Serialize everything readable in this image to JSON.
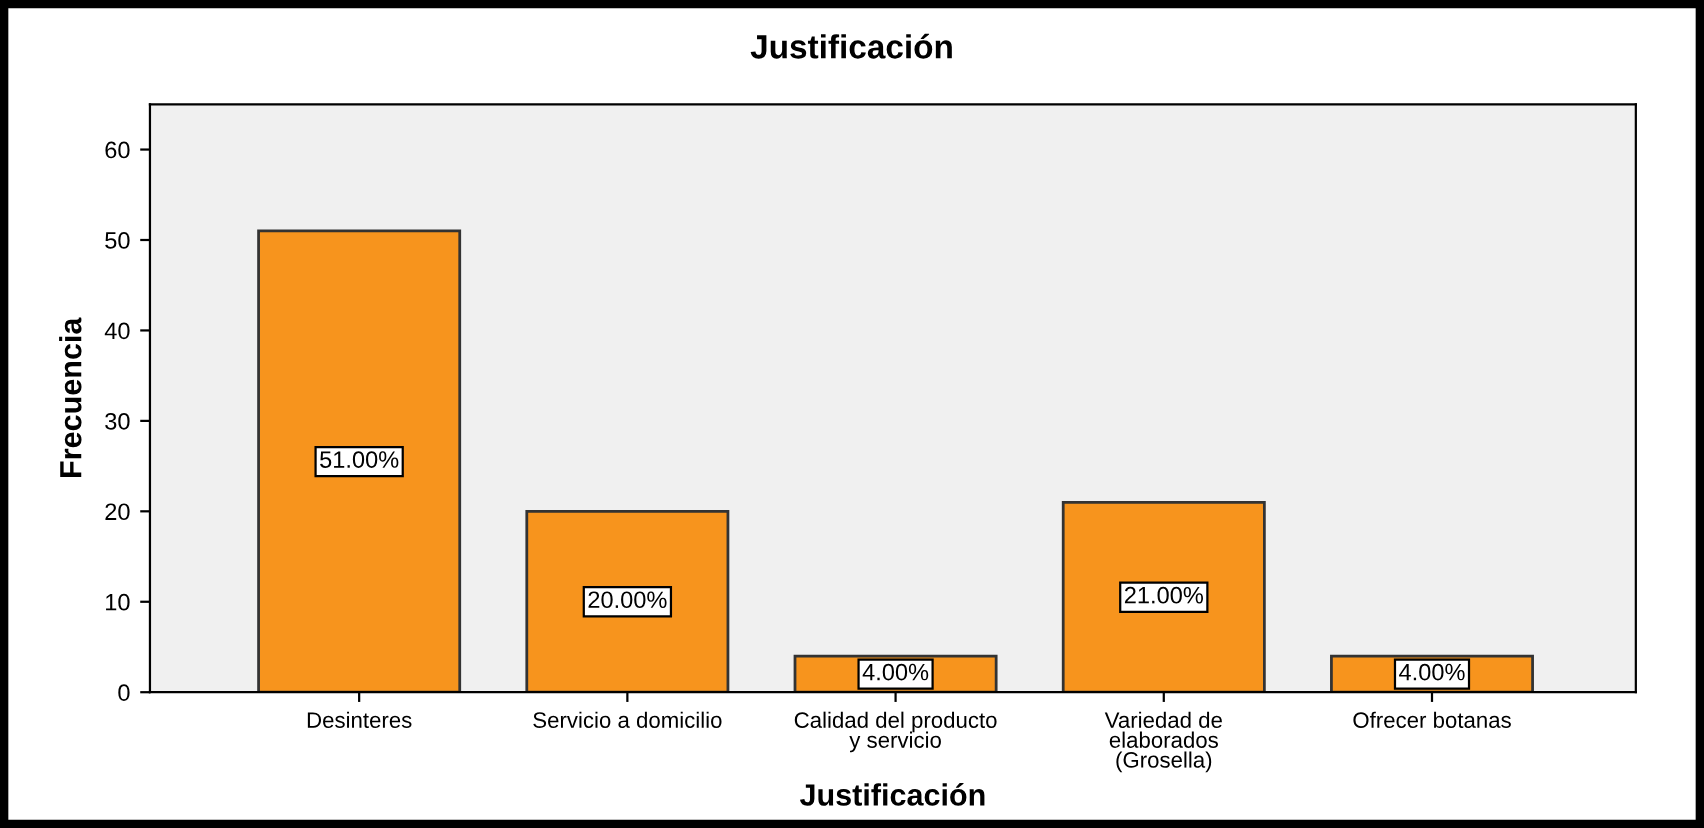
{
  "chart_data": {
    "type": "bar",
    "title": "Justificación",
    "xlabel": "Justificación",
    "ylabel": "Frecuencia",
    "categories": [
      "Desinteres",
      "Servicio a domicilio",
      "Calidad del producto\ny servicio",
      "Variedad de\nelaborados\n(Grosella)",
      "Ofrecer botanas"
    ],
    "values": [
      51,
      20,
      4,
      21,
      4
    ],
    "value_labels": [
      "51.00%",
      "20.00%",
      "4.00%",
      "21.00%",
      "4.00%"
    ],
    "color": "#f7941d",
    "ylim": [
      0,
      65
    ],
    "yticks": [
      0,
      10,
      20,
      30,
      40,
      50,
      60
    ],
    "grid": false,
    "legend": false
  }
}
